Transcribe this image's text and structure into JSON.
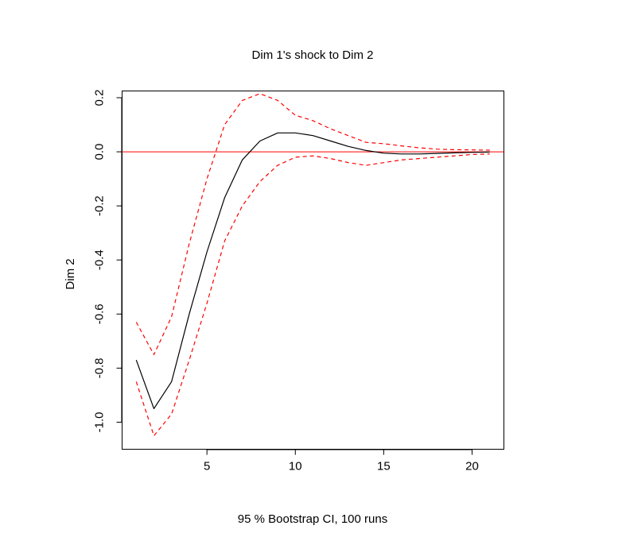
{
  "chart_data": {
    "type": "line",
    "title": "Dim 1's shock to Dim 2",
    "xlabel": "95 % Bootstrap CI,  100 runs",
    "ylabel": "Dim 2",
    "xlim": [
      0.2,
      21.8
    ],
    "ylim": [
      -1.1,
      0.225
    ],
    "xticks": [
      5,
      10,
      15,
      20
    ],
    "xtick_labels": [
      "5",
      "10",
      "15",
      "20"
    ],
    "yticks": [
      -1.0,
      -0.8,
      -0.6,
      -0.4,
      -0.2,
      0.0,
      0.2
    ],
    "ytick_labels": [
      "-1.0",
      "-0.8",
      "-0.6",
      "-0.4",
      "-0.2",
      "0.0",
      "0.2"
    ],
    "reference_line": {
      "y": 0,
      "color": "#ff0000"
    },
    "series": [
      {
        "name": "",
        "role": "impulse response",
        "color": "#000000",
        "dash": "solid",
        "x": [
          1,
          2,
          3,
          4,
          5,
          6,
          7,
          8,
          9,
          10,
          11,
          12,
          13,
          14,
          15,
          16,
          17,
          18,
          19,
          20,
          21
        ],
        "y": [
          -0.77,
          -0.95,
          -0.85,
          -0.6,
          -0.37,
          -0.17,
          -0.03,
          0.04,
          0.07,
          0.07,
          0.06,
          0.04,
          0.02,
          0.005,
          -0.005,
          -0.008,
          -0.008,
          -0.006,
          -0.004,
          -0.002,
          -0.001
        ]
      },
      {
        "name": "",
        "role": "upper CI",
        "color": "#ff0000",
        "dash": "dashed",
        "x": [
          1,
          2,
          3,
          4,
          5,
          6,
          7,
          8,
          9,
          10,
          11,
          12,
          13,
          14,
          15,
          16,
          17,
          18,
          19,
          20,
          21
        ],
        "y": [
          -0.63,
          -0.75,
          -0.61,
          -0.34,
          -0.1,
          0.1,
          0.19,
          0.215,
          0.19,
          0.135,
          0.115,
          0.085,
          0.06,
          0.035,
          0.03,
          0.022,
          0.015,
          0.01,
          0.008,
          0.007,
          0.006
        ]
      },
      {
        "name": "",
        "role": "lower CI",
        "color": "#ff0000",
        "dash": "dashed",
        "x": [
          1,
          2,
          3,
          4,
          5,
          6,
          7,
          8,
          9,
          10,
          11,
          12,
          13,
          14,
          15,
          16,
          17,
          18,
          19,
          20,
          21
        ],
        "y": [
          -0.85,
          -1.05,
          -0.97,
          -0.77,
          -0.56,
          -0.33,
          -0.2,
          -0.11,
          -0.05,
          -0.02,
          -0.015,
          -0.025,
          -0.04,
          -0.05,
          -0.04,
          -0.03,
          -0.025,
          -0.02,
          -0.015,
          -0.01,
          -0.008
        ]
      }
    ],
    "grid": false,
    "legend": "none"
  }
}
